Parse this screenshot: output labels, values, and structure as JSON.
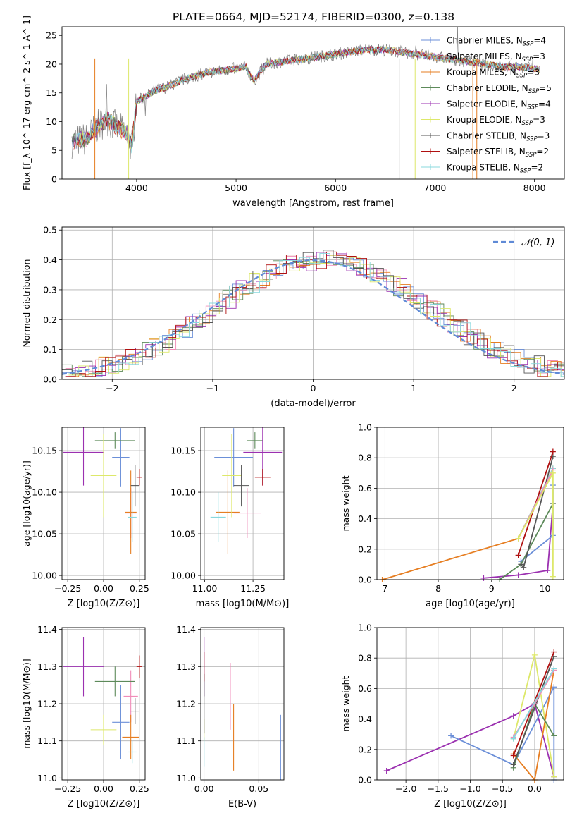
{
  "title": "PLATE=0664, MJD=52174, FIBERID=0300, z=0.138",
  "colors": {
    "chabrier_miles": "#6b8fd8",
    "salpeter_miles": "#f08cb8",
    "kroupa_miles": "#e67e22",
    "chabrier_elodie": "#5d8a5a",
    "salpeter_elodie": "#9b30b0",
    "kroupa_elodie": "#dde86a",
    "chabrier_stelib": "#555555",
    "salpeter_stelib": "#b01010",
    "kroupa_stelib": "#88d8de",
    "gaussian": "#5f8ad6"
  },
  "chart_data": [
    {
      "id": "spectrum",
      "type": "line",
      "xlabel": "wavelength [Angstrom, rest frame]",
      "ylabel": "Flux [f_λ 10^-17 erg cm^-2 s^-1 A^-1]",
      "xlim": [
        3250,
        8300
      ],
      "ylim": [
        0,
        26.5
      ],
      "xticks": [
        "4000",
        "5000",
        "6000",
        "7000",
        "8000"
      ],
      "yticks": [
        "0",
        "5",
        "10",
        "15",
        "20",
        "25"
      ],
      "grid": false,
      "legend": "top-right",
      "series": [
        {
          "name": "Chabrier MILES, N_SSP=4",
          "color": "#6b8fd8"
        },
        {
          "name": "Salpeter MILES, N_SSP=3",
          "color": "#f08cb8"
        },
        {
          "name": "Kroupa MILES, N_SSP=3",
          "color": "#e67e22"
        },
        {
          "name": "Chabrier ELODIE, N_SSP=5",
          "color": "#5d8a5a"
        },
        {
          "name": "Salpeter ELODIE, N_SSP=4",
          "color": "#9b30b0"
        },
        {
          "name": "Kroupa ELODIE, N_SSP=3",
          "color": "#dde86a"
        },
        {
          "name": "Chabrier STELIB, N_SSP=3",
          "color": "#555555"
        },
        {
          "name": "Salpeter STELIB, N_SSP=2",
          "color": "#b01010"
        },
        {
          "name": "Kroupa STELIB, N_SSP=2",
          "color": "#88d8de"
        }
      ],
      "data_flux": [
        {
          "x": 3350,
          "y": 6.5
        },
        {
          "x": 3500,
          "y": 7.0
        },
        {
          "x": 3600,
          "y": 9.0
        },
        {
          "x": 3700,
          "y": 10.5
        },
        {
          "x": 3800,
          "y": 9.0
        },
        {
          "x": 3900,
          "y": 8.0
        },
        {
          "x": 3950,
          "y": 5.5
        },
        {
          "x": 4000,
          "y": 13.5
        },
        {
          "x": 4100,
          "y": 14.5
        },
        {
          "x": 4200,
          "y": 15.5
        },
        {
          "x": 4300,
          "y": 16.0
        },
        {
          "x": 4500,
          "y": 17.5
        },
        {
          "x": 4700,
          "y": 18.5
        },
        {
          "x": 4900,
          "y": 19.0
        },
        {
          "x": 5100,
          "y": 19.5
        },
        {
          "x": 5175,
          "y": 17.0
        },
        {
          "x": 5300,
          "y": 20.0
        },
        {
          "x": 5500,
          "y": 20.5
        },
        {
          "x": 5700,
          "y": 21.0
        },
        {
          "x": 5900,
          "y": 21.5
        },
        {
          "x": 6100,
          "y": 22.0
        },
        {
          "x": 6300,
          "y": 22.5
        },
        {
          "x": 6500,
          "y": 22.5
        },
        {
          "x": 6700,
          "y": 22.0
        },
        {
          "x": 6900,
          "y": 21.5
        },
        {
          "x": 7100,
          "y": 21.0
        },
        {
          "x": 7300,
          "y": 20.5
        },
        {
          "x": 7500,
          "y": 20.0
        },
        {
          "x": 7700,
          "y": 19.5
        },
        {
          "x": 7900,
          "y": 19.5
        },
        {
          "x": 8050,
          "y": 19.0
        }
      ]
    },
    {
      "id": "residuals",
      "type": "line",
      "xlabel": "(data-model)/error",
      "ylabel": "Normed distribution",
      "xlim": [
        -2.5,
        2.5
      ],
      "ylim": [
        0,
        0.51
      ],
      "xticks": [
        "−2",
        "−1",
        "0",
        "1",
        "2"
      ],
      "yticks": [
        "0.0",
        "0.1",
        "0.2",
        "0.3",
        "0.4",
        "0.5"
      ],
      "grid": true,
      "legend": "top-right",
      "legend_label": "𝒩(0, 1)",
      "gaussian": {
        "mean": 0,
        "sigma": 1
      }
    },
    {
      "id": "age_vs_Z",
      "type": "scatter",
      "xlabel": "Z [log10(Z/Z⊙)]",
      "ylabel": "age  [log10(age/yr)]",
      "xlim": [
        -0.29,
        0.29
      ],
      "ylim": [
        9.995,
        10.178
      ],
      "xticks": [
        "−0.25",
        "0.00",
        "0.25"
      ],
      "yticks": [
        "10.00",
        "10.05",
        "10.10",
        "10.15"
      ],
      "grid": true,
      "points": [
        {
          "color": "#6b8fd8",
          "x": 0.12,
          "xerr": 0.06,
          "y": 10.142,
          "yerr": 0.035
        },
        {
          "color": "#f08cb8",
          "x": 0.19,
          "xerr": 0.04,
          "y": 10.075,
          "yerr": 0.03
        },
        {
          "color": "#e67e22",
          "x": 0.19,
          "xerr": 0.04,
          "y": 10.076,
          "yerr": 0.05
        },
        {
          "color": "#5d8a5a",
          "x": 0.08,
          "xerr": 0.14,
          "y": 10.162,
          "yerr": 0.01
        },
        {
          "color": "#9b30b0",
          "x": -0.14,
          "xerr": 0.14,
          "y": 10.148,
          "yerr": 0.04
        },
        {
          "color": "#dde86a",
          "x": 0.0,
          "xerr": 0.09,
          "y": 10.12,
          "yerr": 0.05
        },
        {
          "color": "#555555",
          "x": 0.22,
          "xerr": 0.03,
          "y": 10.108,
          "yerr": 0.025
        },
        {
          "color": "#b01010",
          "x": 0.25,
          "xerr": 0.02,
          "y": 10.118,
          "yerr": 0.01
        },
        {
          "color": "#88d8de",
          "x": 0.2,
          "xerr": 0.03,
          "y": 10.07,
          "yerr": 0.03
        }
      ]
    },
    {
      "id": "age_vs_mass",
      "type": "scatter",
      "xlabel": "mass [log10(M/M⊙)]",
      "ylabel": "",
      "xlim": [
        10.98,
        11.41
      ],
      "ylim": [
        9.995,
        10.178
      ],
      "xticks": [
        "11.00",
        "11.25"
      ],
      "yticks": [
        "10.00",
        "10.05",
        "10.10",
        "10.15"
      ],
      "grid": true,
      "points": [
        {
          "color": "#6b8fd8",
          "x": 11.15,
          "xerr": 0.1,
          "y": 10.142,
          "yerr": 0.035
        },
        {
          "color": "#f08cb8",
          "x": 11.22,
          "xerr": 0.07,
          "y": 10.075,
          "yerr": 0.03
        },
        {
          "color": "#e67e22",
          "x": 11.12,
          "xerr": 0.06,
          "y": 10.076,
          "yerr": 0.05
        },
        {
          "color": "#5d8a5a",
          "x": 11.26,
          "xerr": 0.04,
          "y": 10.162,
          "yerr": 0.01
        },
        {
          "color": "#9b30b0",
          "x": 11.3,
          "xerr": 0.1,
          "y": 10.148,
          "yerr": 0.04
        },
        {
          "color": "#dde86a",
          "x": 11.14,
          "xerr": 0.05,
          "y": 10.12,
          "yerr": 0.05
        },
        {
          "color": "#555555",
          "x": 11.19,
          "xerr": 0.04,
          "y": 10.108,
          "yerr": 0.025
        },
        {
          "color": "#b01010",
          "x": 11.3,
          "xerr": 0.04,
          "y": 10.118,
          "yerr": 0.01
        },
        {
          "color": "#88d8de",
          "x": 11.07,
          "xerr": 0.04,
          "y": 10.07,
          "yerr": 0.03
        }
      ]
    },
    {
      "id": "mass_weight_vs_age",
      "type": "line",
      "xlabel": "age  [log10(age/yr)]",
      "ylabel": "mass weight",
      "xlim": [
        6.85,
        10.35
      ],
      "ylim": [
        0,
        1
      ],
      "xticks": [
        "7",
        "8",
        "9",
        "10"
      ],
      "yticks": [
        "0.0",
        "0.2",
        "0.4",
        "0.6",
        "0.8",
        "1.0"
      ],
      "grid": true,
      "series": [
        {
          "color": "#e67e22",
          "points": [
            [
              6.95,
              0.0
            ],
            [
              9.5,
              0.27
            ],
            [
              10.15,
              0.73
            ]
          ]
        },
        {
          "color": "#88d8de",
          "points": [
            [
              9.5,
              0.27
            ],
            [
              10.15,
              0.73
            ]
          ]
        },
        {
          "color": "#9b30b0",
          "points": [
            [
              8.85,
              0.01
            ],
            [
              9.5,
              0.03
            ],
            [
              10.05,
              0.06
            ],
            [
              10.15,
              0.5
            ]
          ]
        },
        {
          "color": "#6b8fd8",
          "points": [
            [
              9.55,
              0.12
            ],
            [
              10.15,
              0.29
            ],
            [
              10.15,
              0.62
            ]
          ]
        },
        {
          "color": "#5d8a5a",
          "points": [
            [
              9.15,
              0.0
            ],
            [
              9.55,
              0.1
            ],
            [
              10.15,
              0.5
            ]
          ]
        },
        {
          "color": "#555555",
          "points": [
            [
              9.55,
              0.1
            ],
            [
              9.6,
              0.08
            ],
            [
              10.15,
              0.81
            ]
          ]
        },
        {
          "color": "#b01010",
          "points": [
            [
              9.5,
              0.16
            ],
            [
              10.15,
              0.84
            ]
          ]
        },
        {
          "color": "#f08cb8",
          "points": [
            [
              9.5,
              0.27
            ],
            [
              10.15,
              0.72
            ]
          ]
        },
        {
          "color": "#dde86a",
          "points": [
            [
              9.5,
              0.27
            ],
            [
              10.15,
              0.7
            ],
            [
              10.15,
              0.02
            ]
          ]
        }
      ]
    },
    {
      "id": "mass_vs_Z",
      "type": "scatter",
      "xlabel": "Z [log10(Z/Z⊙)]",
      "ylabel": "mass [log10(M/M⊙)]",
      "xlim": [
        -0.29,
        0.29
      ],
      "ylim": [
        10.995,
        11.405
      ],
      "xticks": [
        "−0.25",
        "0.00",
        "0.25"
      ],
      "yticks": [
        "11.0",
        "11.1",
        "11.2",
        "11.3",
        "11.4"
      ],
      "grid": true,
      "points": [
        {
          "color": "#6b8fd8",
          "x": 0.12,
          "xerr": 0.06,
          "y": 11.15,
          "yerr": 0.1
        },
        {
          "color": "#f08cb8",
          "x": 0.19,
          "xerr": 0.05,
          "y": 11.22,
          "yerr": 0.07
        },
        {
          "color": "#e67e22",
          "x": 0.19,
          "xerr": 0.06,
          "y": 11.11,
          "yerr": 0.06
        },
        {
          "color": "#5d8a5a",
          "x": 0.08,
          "xerr": 0.14,
          "y": 11.26,
          "yerr": 0.04
        },
        {
          "color": "#9b30b0",
          "x": -0.14,
          "xerr": 0.14,
          "y": 11.3,
          "yerr": 0.08
        },
        {
          "color": "#dde86a",
          "x": 0.0,
          "xerr": 0.09,
          "y": 11.13,
          "yerr": 0.04
        },
        {
          "color": "#555555",
          "x": 0.22,
          "xerr": 0.03,
          "y": 11.18,
          "yerr": 0.035
        },
        {
          "color": "#b01010",
          "x": 0.25,
          "xerr": 0.02,
          "y": 11.3,
          "yerr": 0.03
        },
        {
          "color": "#88d8de",
          "x": 0.2,
          "xerr": 0.03,
          "y": 11.07,
          "yerr": 0.03
        }
      ]
    },
    {
      "id": "mass_vs_ebv",
      "type": "scatter",
      "xlabel": "E(B-V)",
      "ylabel": "",
      "xlim": [
        -0.003,
        0.073
      ],
      "ylim": [
        10.995,
        11.405
      ],
      "xticks": [
        "0.00",
        "0.05"
      ],
      "yticks": [
        "11.0",
        "11.1",
        "11.2",
        "11.3",
        "11.4"
      ],
      "grid": true,
      "points": [
        {
          "color": "#6b8fd8",
          "x": 0.07,
          "xerr": 0,
          "y": 11.06,
          "yerr": 0.11
        },
        {
          "color": "#f08cb8",
          "x": 0.024,
          "xerr": 0,
          "y": 11.22,
          "yerr": 0.09
        },
        {
          "color": "#e67e22",
          "x": 0.027,
          "xerr": 0,
          "y": 11.11,
          "yerr": 0.09
        },
        {
          "color": "#5d8a5a",
          "x": 0.0,
          "xerr": 0,
          "y": 11.25,
          "yerr": 0.03
        },
        {
          "color": "#9b30b0",
          "x": 0.0,
          "xerr": 0,
          "y": 11.3,
          "yerr": 0.08
        },
        {
          "color": "#dde86a",
          "x": 0.0,
          "xerr": 0,
          "y": 11.13,
          "yerr": 0.03
        },
        {
          "color": "#555555",
          "x": 0.0,
          "xerr": 0,
          "y": 11.2,
          "yerr": 0.08
        },
        {
          "color": "#b01010",
          "x": 0.0,
          "xerr": 0,
          "y": 11.3,
          "yerr": 0.04
        },
        {
          "color": "#88d8de",
          "x": 0.0,
          "xerr": 0,
          "y": 11.07,
          "yerr": 0.04
        }
      ]
    },
    {
      "id": "mass_weight_vs_Z",
      "type": "line",
      "xlabel": "Z [log10(Z/Z⊙)]",
      "ylabel": "mass weight",
      "xlim": [
        -2.45,
        0.45
      ],
      "ylim": [
        0,
        1
      ],
      "xticks": [
        "−2.0",
        "−1.5",
        "−1.0",
        "−0.5",
        "0.0"
      ],
      "yticks": [
        "0.0",
        "0.2",
        "0.4",
        "0.6",
        "0.8",
        "1.0"
      ],
      "grid": true,
      "series": [
        {
          "color": "#9b30b0",
          "points": [
            [
              -2.3,
              0.06
            ],
            [
              -0.33,
              0.42
            ],
            [
              0.0,
              0.5
            ],
            [
              0.3,
              0.02
            ]
          ]
        },
        {
          "color": "#6b8fd8",
          "points": [
            [
              -1.3,
              0.29
            ],
            [
              -0.33,
              0.1
            ],
            [
              0.3,
              0.61
            ],
            [
              0.3,
              0.0
            ]
          ]
        },
        {
          "color": "#e67e22",
          "points": [
            [
              -0.33,
              0.17
            ],
            [
              0.0,
              0.0
            ],
            [
              0.3,
              0.72
            ]
          ]
        },
        {
          "color": "#dde86a",
          "points": [
            [
              -0.33,
              0.27
            ],
            [
              0.0,
              0.82
            ],
            [
              0.3,
              0.02
            ]
          ]
        },
        {
          "color": "#5d8a5a",
          "points": [
            [
              -0.33,
              0.08
            ],
            [
              0.0,
              0.5
            ],
            [
              0.3,
              0.29
            ]
          ]
        },
        {
          "color": "#555555",
          "points": [
            [
              -0.33,
              0.1
            ],
            [
              0.3,
              0.81
            ]
          ]
        },
        {
          "color": "#b01010",
          "points": [
            [
              -0.33,
              0.16
            ],
            [
              0.3,
              0.84
            ]
          ]
        },
        {
          "color": "#f08cb8",
          "points": [
            [
              -0.33,
              0.28
            ],
            [
              0.0,
              0.5
            ],
            [
              0.3,
              0.72
            ]
          ]
        },
        {
          "color": "#88d8de",
          "points": [
            [
              -0.33,
              0.27
            ],
            [
              0.3,
              0.73
            ]
          ]
        }
      ]
    }
  ]
}
